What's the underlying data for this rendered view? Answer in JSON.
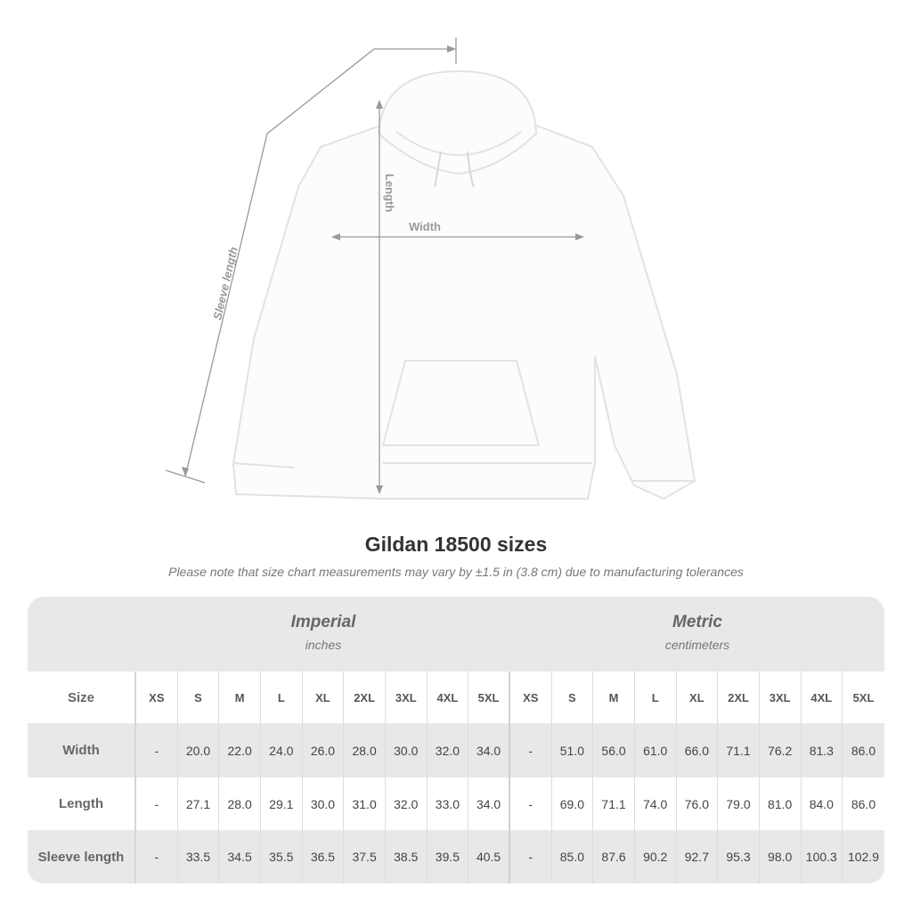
{
  "diagram": {
    "labels": {
      "sleeve": "Sleeve length",
      "length": "Length",
      "width": "Width"
    }
  },
  "title": "Gildan 18500 sizes",
  "note": "Please note that size chart measurements may vary by ±1.5 in (3.8 cm) due to manufacturing tolerances",
  "table": {
    "imperial": {
      "title": "Imperial",
      "unit": "inches"
    },
    "metric": {
      "title": "Metric",
      "unit": "centimeters"
    },
    "size_label": "Size",
    "sizes": [
      "XS",
      "S",
      "M",
      "L",
      "XL",
      "2XL",
      "3XL",
      "4XL",
      "5XL",
      "XS",
      "S",
      "M",
      "L",
      "XL",
      "2XL",
      "3XL",
      "4XL",
      "5XL"
    ],
    "rows": [
      {
        "label": "Width",
        "values": [
          "-",
          "20.0",
          "22.0",
          "24.0",
          "26.0",
          "28.0",
          "30.0",
          "32.0",
          "34.0",
          "-",
          "51.0",
          "56.0",
          "61.0",
          "66.0",
          "71.1",
          "76.2",
          "81.3",
          "86.0"
        ]
      },
      {
        "label": "Length",
        "values": [
          "-",
          "27.1",
          "28.0",
          "29.1",
          "30.0",
          "31.0",
          "32.0",
          "33.0",
          "34.0",
          "-",
          "69.0",
          "71.1",
          "74.0",
          "76.0",
          "79.0",
          "81.0",
          "84.0",
          "86.0"
        ]
      },
      {
        "label": "Sleeve length",
        "values": [
          "-",
          "33.5",
          "34.5",
          "35.5",
          "36.5",
          "37.5",
          "38.5",
          "39.5",
          "40.5",
          "-",
          "85.0",
          "87.6",
          "90.2",
          "92.7",
          "95.3",
          "98.0",
          "100.3",
          "102.9"
        ]
      }
    ]
  }
}
